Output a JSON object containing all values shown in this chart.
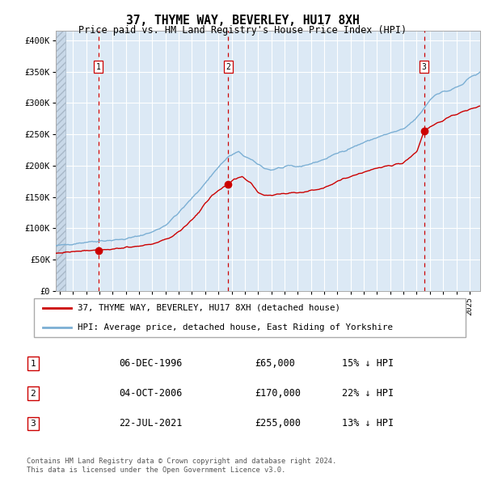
{
  "title": "37, THYME WAY, BEVERLEY, HU17 8XH",
  "subtitle": "Price paid vs. HM Land Registry's House Price Index (HPI)",
  "legend_label_red": "37, THYME WAY, BEVERLEY, HU17 8XH (detached house)",
  "legend_label_blue": "HPI: Average price, detached house, East Riding of Yorkshire",
  "sale_annotations": [
    [
      "1",
      "06-DEC-1996",
      "£65,000",
      "15% ↓ HPI"
    ],
    [
      "2",
      "04-OCT-2006",
      "£170,000",
      "22% ↓ HPI"
    ],
    [
      "3",
      "22-JUL-2021",
      "£255,000",
      "13% ↓ HPI"
    ]
  ],
  "ylabel_ticks": [
    "£0",
    "£50K",
    "£100K",
    "£150K",
    "£200K",
    "£250K",
    "£300K",
    "£350K",
    "£400K"
  ],
  "ytick_values": [
    0,
    50000,
    100000,
    150000,
    200000,
    250000,
    300000,
    350000,
    400000
  ],
  "ylim": [
    0,
    415000
  ],
  "xlim_start": 1993.7,
  "xlim_end": 2025.8,
  "background_color": "#dce9f5",
  "grid_color": "#ffffff",
  "red_line_color": "#cc0000",
  "blue_line_color": "#7bafd4",
  "dashed_line_color": "#cc0000",
  "sale_dot_color": "#cc0000",
  "footer_text": "Contains HM Land Registry data © Crown copyright and database right 2024.\nThis data is licensed under the Open Government Licence v3.0.",
  "xtick_years": [
    1994,
    1995,
    1996,
    1997,
    1998,
    1999,
    2000,
    2001,
    2002,
    2003,
    2004,
    2005,
    2006,
    2007,
    2008,
    2009,
    2010,
    2011,
    2012,
    2013,
    2014,
    2015,
    2016,
    2017,
    2018,
    2019,
    2020,
    2021,
    2022,
    2023,
    2024,
    2025
  ],
  "sale_times": [
    1996.917,
    2006.75,
    2021.556
  ],
  "sale_prices": [
    65000,
    170000,
    255000
  ],
  "sale_labels": [
    "1",
    "2",
    "3"
  ],
  "blue_anchors_x": [
    1993.7,
    1994.5,
    1996.0,
    1997.0,
    1998.0,
    1999.0,
    2000.0,
    2001.0,
    2002.0,
    2003.0,
    2004.0,
    2005.0,
    2006.0,
    2006.8,
    2007.5,
    2008.0,
    2008.8,
    2009.5,
    2010.0,
    2010.5,
    2011.0,
    2011.5,
    2012.0,
    2013.0,
    2014.0,
    2015.0,
    2016.0,
    2017.0,
    2018.0,
    2019.0,
    2020.0,
    2021.0,
    2021.5,
    2022.0,
    2022.5,
    2023.0,
    2023.5,
    2024.0,
    2024.5,
    2025.0,
    2025.8
  ],
  "blue_anchors_y": [
    72000,
    74000,
    78000,
    80000,
    81000,
    83000,
    88000,
    94000,
    105000,
    125000,
    148000,
    172000,
    198000,
    215000,
    222000,
    215000,
    205000,
    196000,
    193000,
    196000,
    197000,
    200000,
    198000,
    203000,
    210000,
    220000,
    228000,
    237000,
    245000,
    252000,
    258000,
    276000,
    290000,
    305000,
    315000,
    318000,
    320000,
    325000,
    330000,
    340000,
    350000
  ],
  "red_anchors_x": [
    1993.7,
    1994.5,
    1995.5,
    1996.0,
    1996.917,
    1997.5,
    1998.5,
    1999.5,
    2000.5,
    2001.5,
    2002.5,
    2003.5,
    2004.5,
    2005.5,
    2006.75,
    2007.2,
    2007.8,
    2008.5,
    2009.0,
    2009.5,
    2010.0,
    2010.5,
    2011.0,
    2011.5,
    2012.0,
    2012.5,
    2013.0,
    2014.0,
    2015.0,
    2016.0,
    2017.0,
    2018.0,
    2019.0,
    2020.0,
    2021.0,
    2021.556,
    2022.0,
    2022.5,
    2023.0,
    2023.5,
    2024.0,
    2024.5,
    2025.0,
    2025.8
  ],
  "red_anchors_y": [
    60000,
    62000,
    64000,
    65000,
    65000,
    66000,
    68000,
    70000,
    73000,
    78000,
    87000,
    103000,
    125000,
    153000,
    170000,
    178000,
    182000,
    172000,
    157000,
    153000,
    153000,
    155000,
    155000,
    157000,
    157000,
    158000,
    160000,
    165000,
    175000,
    183000,
    190000,
    196000,
    200000,
    205000,
    222000,
    255000,
    262000,
    268000,
    272000,
    278000,
    282000,
    286000,
    290000,
    295000
  ]
}
